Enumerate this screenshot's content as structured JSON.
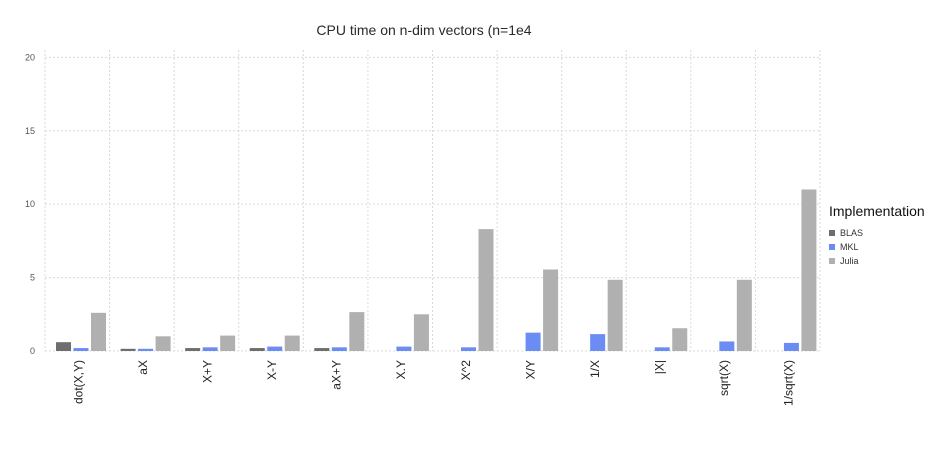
{
  "chart_data": {
    "type": "bar",
    "title": "CPU time on n-dim vectors (n=1e4",
    "xlabel": "",
    "ylabel": "",
    "ylim": [
      0,
      20.5
    ],
    "yticks": [
      0,
      5,
      10,
      15,
      20
    ],
    "grid": true,
    "categories": [
      "dot(X,Y)",
      "aX",
      "X+Y",
      "X-Y",
      "aX+Y",
      "X.Y",
      "X^2",
      "X/Y",
      "1/X",
      "|X|",
      "sqrt(X)",
      "1/sqrt(X)"
    ],
    "legend": {
      "title": "Implementation",
      "position": "right"
    },
    "series": [
      {
        "name": "BLAS",
        "color": "#6e6e6e",
        "values": [
          0.6,
          0.15,
          0.2,
          0.2,
          0.2,
          null,
          null,
          null,
          null,
          null,
          null,
          null
        ]
      },
      {
        "name": "MKL",
        "color": "#6b8cf2",
        "values": [
          0.2,
          0.15,
          0.25,
          0.3,
          0.25,
          0.3,
          0.25,
          1.25,
          1.15,
          0.25,
          0.65,
          0.55
        ]
      },
      {
        "name": "Julia",
        "color": "#b0b0b0",
        "values": [
          2.6,
          1.0,
          1.05,
          1.05,
          2.65,
          2.5,
          8.3,
          5.55,
          4.85,
          1.55,
          4.85,
          11.0
        ]
      }
    ]
  }
}
